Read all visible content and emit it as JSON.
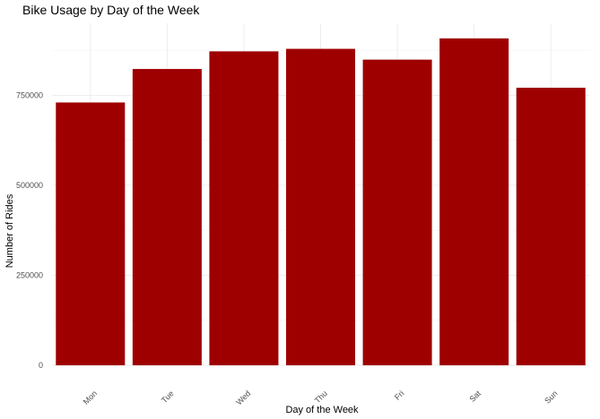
{
  "chart_data": {
    "type": "bar",
    "title": "Bike Usage by Day of the Week",
    "xlabel": "Day of the Week",
    "ylabel": "Number of Rides",
    "categories": [
      "Mon",
      "Tue",
      "Wed",
      "Thu",
      "Fri",
      "Sat",
      "Sun"
    ],
    "values": [
      730000,
      823000,
      872000,
      879000,
      849000,
      908000,
      771000
    ],
    "ylim": [
      0,
      950000
    ],
    "yticks": [
      0,
      250000,
      500000,
      750000
    ],
    "ytick_labels": [
      "0",
      "250000",
      "500000",
      "750000"
    ],
    "bar_color": "#9e0000",
    "grid": true,
    "legend": "none"
  }
}
